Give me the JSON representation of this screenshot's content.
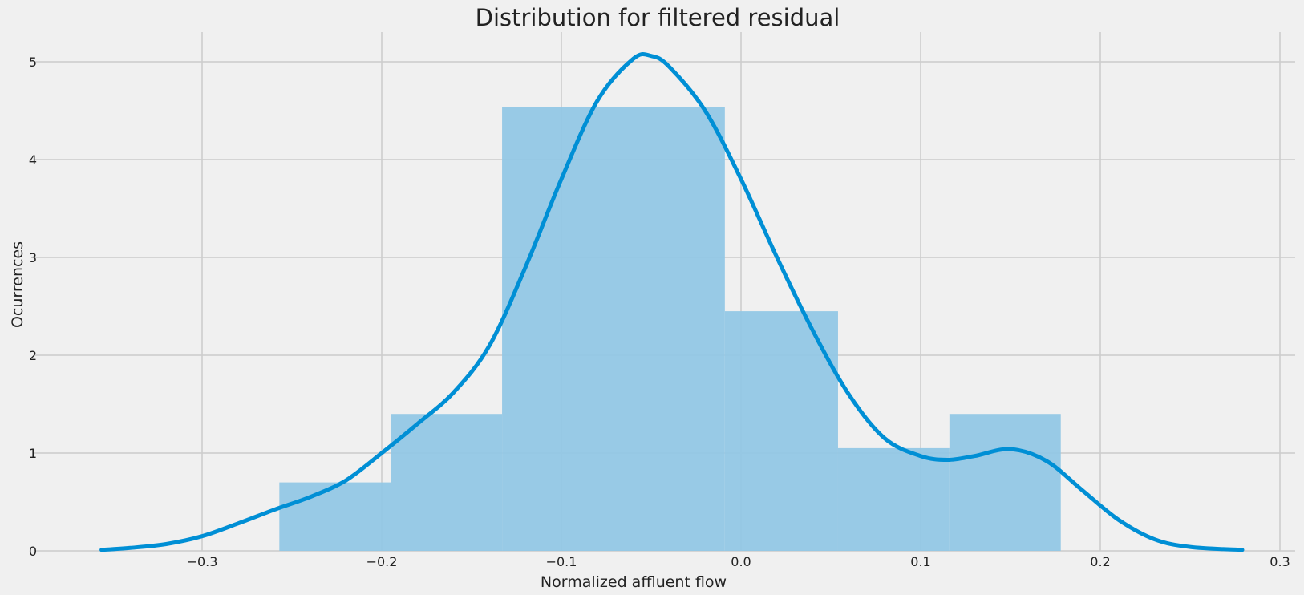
{
  "chart_data": {
    "type": "bar",
    "title": "Distribution for filtered residual",
    "xlabel": "Normalized affluent flow",
    "ylabel": "Ocurrences",
    "xlim": [
      -0.36,
      0.3
    ],
    "ylim": [
      0,
      5.3
    ],
    "grid": true,
    "legend": "none",
    "x_ticks": [
      {
        "value": -0.3,
        "label": "−0.3"
      },
      {
        "value": -0.2,
        "label": "−0.2"
      },
      {
        "value": -0.1,
        "label": "−0.1"
      },
      {
        "value": 0.0,
        "label": "0.0"
      },
      {
        "value": 0.1,
        "label": "0.1"
      },
      {
        "value": 0.2,
        "label": "0.2"
      },
      {
        "value": 0.3,
        "label": "0.3"
      }
    ],
    "y_ticks": [
      {
        "value": 0,
        "label": "0"
      },
      {
        "value": 1,
        "label": "1"
      },
      {
        "value": 2,
        "label": "2"
      },
      {
        "value": 3,
        "label": "3"
      },
      {
        "value": 4,
        "label": "4"
      },
      {
        "value": 5,
        "label": "5"
      }
    ],
    "histogram": {
      "bins": [
        {
          "x0": -0.257,
          "x1": -0.195,
          "value": 0.7
        },
        {
          "x0": -0.195,
          "x1": -0.133,
          "value": 1.4
        },
        {
          "x0": -0.133,
          "x1": -0.009,
          "value": 4.54
        },
        {
          "x0": -0.009,
          "x1": 0.054,
          "value": 2.45
        },
        {
          "x0": 0.054,
          "x1": 0.116,
          "value": 1.05
        },
        {
          "x0": 0.116,
          "x1": 0.178,
          "value": 1.4
        }
      ],
      "color": "#92c7e5"
    },
    "kde": {
      "type": "line",
      "color": "#008fd5",
      "x": [
        -0.356,
        -0.34,
        -0.32,
        -0.3,
        -0.28,
        -0.26,
        -0.24,
        -0.22,
        -0.2,
        -0.18,
        -0.16,
        -0.14,
        -0.12,
        -0.1,
        -0.08,
        -0.06,
        -0.05,
        -0.04,
        -0.02,
        0.0,
        0.02,
        0.04,
        0.06,
        0.08,
        0.1,
        0.115,
        0.13,
        0.15,
        0.17,
        0.19,
        0.21,
        0.23,
        0.25,
        0.279
      ],
      "y": [
        0.01,
        0.03,
        0.07,
        0.15,
        0.28,
        0.42,
        0.55,
        0.72,
        1.0,
        1.3,
        1.62,
        2.1,
        2.9,
        3.8,
        4.6,
        5.03,
        5.06,
        4.95,
        4.5,
        3.8,
        3.0,
        2.25,
        1.6,
        1.15,
        0.97,
        0.93,
        0.97,
        1.04,
        0.92,
        0.62,
        0.32,
        0.12,
        0.04,
        0.01
      ]
    }
  }
}
